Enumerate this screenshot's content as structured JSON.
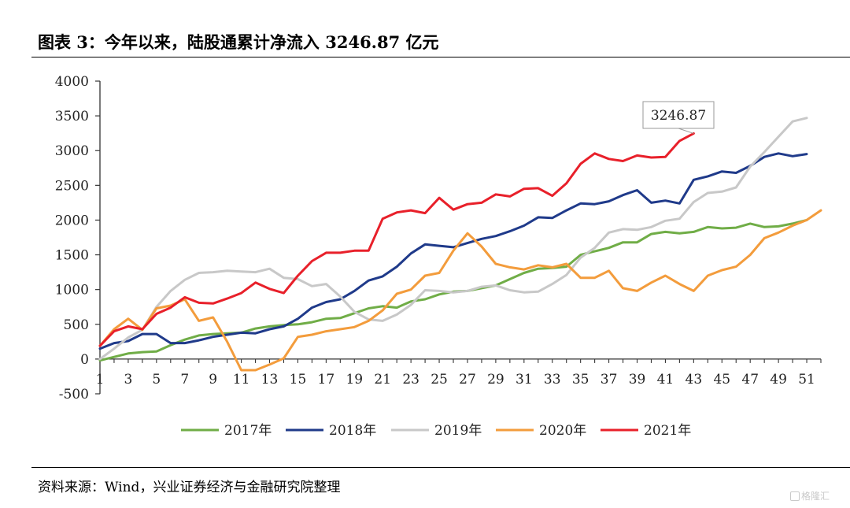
{
  "page": {
    "title": "图表 3：今年以来，陆股通累计净流入 3246.87 亿元",
    "source": "资料来源：Wind，兴业证券经济与金融研究院整理",
    "watermark": "格隆汇"
  },
  "chart_data": {
    "type": "line",
    "title": "图表 3：今年以来，陆股通累计净流入 3246.87 亿元",
    "xlabel": "",
    "ylabel": "",
    "xlim": [
      1,
      52
    ],
    "ylim": [
      -500,
      4000
    ],
    "yticks": [
      -500,
      0,
      500,
      1000,
      1500,
      2000,
      2500,
      3000,
      3500,
      4000
    ],
    "xticks": [
      1,
      3,
      5,
      7,
      9,
      11,
      13,
      15,
      17,
      19,
      21,
      23,
      25,
      27,
      29,
      31,
      33,
      35,
      37,
      39,
      41,
      43,
      45,
      47,
      49,
      51
    ],
    "grid": false,
    "legend_position": "bottom",
    "annotation": {
      "label": "3246.87",
      "x": 43,
      "y": 3246.87
    },
    "series": [
      {
        "name": "2017年",
        "color": "#70ad47",
        "values": [
          -20,
          30,
          80,
          100,
          110,
          200,
          280,
          340,
          360,
          370,
          380,
          440,
          470,
          490,
          500,
          530,
          580,
          590,
          660,
          730,
          760,
          740,
          830,
          860,
          930,
          970,
          980,
          1020,
          1060,
          1150,
          1240,
          1300,
          1310,
          1330,
          1500,
          1550,
          1600,
          1680,
          1680,
          1800,
          1830,
          1810,
          1830,
          1900,
          1880,
          1890,
          1950,
          1900,
          1910,
          1950,
          2000
        ]
      },
      {
        "name": "2018年",
        "color": "#1f3a8a",
        "values": [
          150,
          230,
          260,
          360,
          360,
          230,
          230,
          270,
          320,
          350,
          380,
          370,
          430,
          470,
          580,
          740,
          820,
          860,
          980,
          1130,
          1190,
          1330,
          1520,
          1650,
          1630,
          1610,
          1670,
          1730,
          1770,
          1840,
          1920,
          2040,
          2030,
          2140,
          2240,
          2230,
          2270,
          2360,
          2430,
          2250,
          2280,
          2240,
          2580,
          2630,
          2700,
          2680,
          2780,
          2910,
          2960,
          2920,
          2950
        ]
      },
      {
        "name": "2019年",
        "color": "#c8c8c8",
        "values": [
          0,
          150,
          310,
          420,
          750,
          980,
          1140,
          1240,
          1250,
          1270,
          1260,
          1250,
          1300,
          1170,
          1150,
          1050,
          1080,
          900,
          680,
          570,
          550,
          640,
          780,
          990,
          980,
          960,
          980,
          1040,
          1060,
          990,
          960,
          970,
          1080,
          1210,
          1460,
          1600,
          1820,
          1870,
          1860,
          1900,
          1990,
          2020,
          2260,
          2390,
          2410,
          2470,
          2770,
          2980,
          3200,
          3420,
          3470
        ]
      },
      {
        "name": "2020年",
        "color": "#f39c3c",
        "values": [
          190,
          430,
          580,
          420,
          730,
          770,
          860,
          550,
          600,
          250,
          -160,
          -160,
          -80,
          10,
          320,
          350,
          400,
          430,
          460,
          550,
          700,
          940,
          1000,
          1200,
          1240,
          1560,
          1810,
          1620,
          1370,
          1320,
          1290,
          1350,
          1320,
          1370,
          1170,
          1170,
          1270,
          1020,
          980,
          1100,
          1200,
          1080,
          980,
          1200,
          1280,
          1330,
          1500,
          1740,
          1820,
          1920,
          2000,
          2140
        ]
      },
      {
        "name": "2021年",
        "color": "#e8202a",
        "values": [
          190,
          400,
          470,
          430,
          650,
          740,
          890,
          810,
          800,
          870,
          950,
          1100,
          1010,
          950,
          1200,
          1410,
          1530,
          1530,
          1560,
          1560,
          2020,
          2110,
          2140,
          2100,
          2320,
          2150,
          2230,
          2250,
          2370,
          2340,
          2450,
          2460,
          2350,
          2530,
          2810,
          2960,
          2880,
          2850,
          2930,
          2900,
          2910,
          3140,
          3246.87
        ]
      }
    ]
  }
}
